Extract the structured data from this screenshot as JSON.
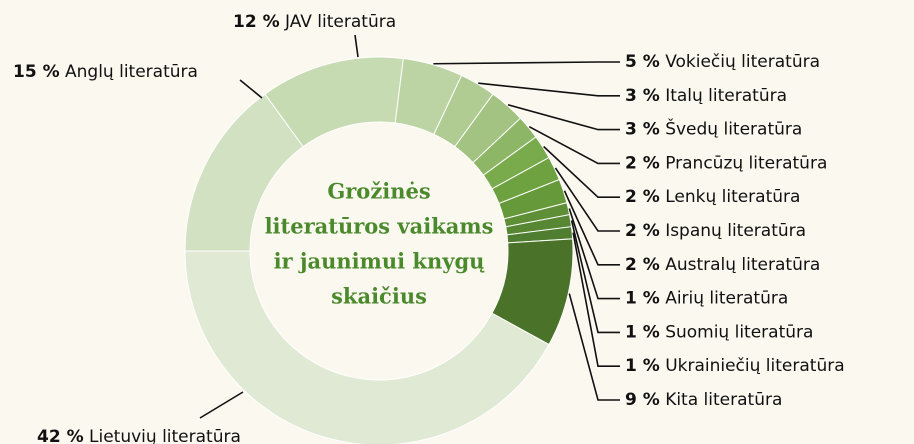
{
  "chart_data": {
    "type": "donut",
    "title": [
      "Grožinės",
      "literatūros vaikams",
      "ir jaunimui knygų",
      "skaičius"
    ],
    "categories": [
      "Lietuvių literatūra",
      "Anglų literatūra",
      "JAV literatūra",
      "Vokiečių literatūra",
      "Italų literatūra",
      "Švedų literatūra",
      "Prancūzų literatūra",
      "Lenkų literatūra",
      "Ispanų literatūra",
      "Australų literatūra",
      "Airių literatūra",
      "Suomių literatūra",
      "Ukrainiečių literatūra",
      "Kita literatūra"
    ],
    "values": [
      42,
      15,
      12,
      5,
      3,
      3,
      2,
      2,
      2,
      2,
      1,
      1,
      1,
      9
    ],
    "value_labels": [
      "42 %",
      "15 %",
      "12 %",
      "5 %",
      "3 %",
      "3 %",
      "2 %",
      "2 %",
      "2 %",
      "2 %",
      "1 %",
      "1 %",
      "1 %",
      "9 %"
    ],
    "colors": [
      "#e0e9d4",
      "#d1e1c2",
      "#c6dbb2",
      "#bcd4a4",
      "#b0cc92",
      "#a2c381",
      "#8db766",
      "#79aa4b",
      "#6ea240",
      "#66993a",
      "#5e8f36",
      "#578733",
      "#507e30",
      "#4a7229"
    ]
  }
}
